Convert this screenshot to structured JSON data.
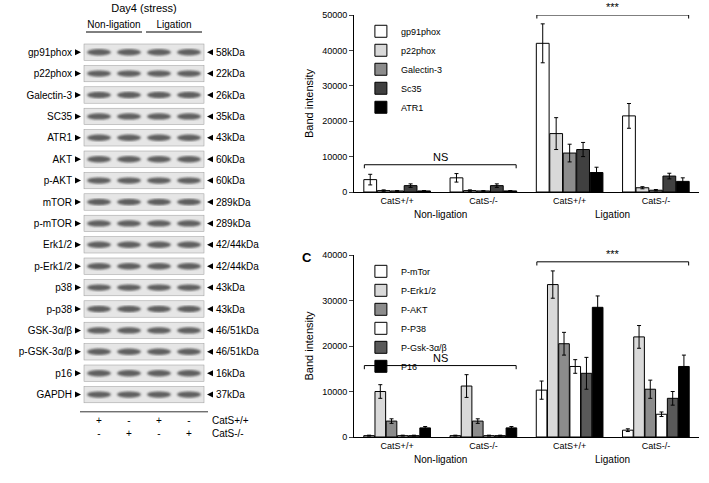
{
  "blot": {
    "title": "Day4 (stress)",
    "groups": [
      {
        "label": "Non-ligation",
        "lanes": 2
      },
      {
        "label": "Ligation",
        "lanes": 2
      }
    ],
    "rows": [
      {
        "protein": "gp91phox",
        "size": "58kDa"
      },
      {
        "protein": "p22phox",
        "size": "22kDa"
      },
      {
        "protein": "Galectin-3",
        "size": "26kDa"
      },
      {
        "protein": "SC35",
        "size": "35kDa"
      },
      {
        "protein": "ATR1",
        "size": "43kDa"
      },
      {
        "protein": "AKT",
        "size": "60kDa"
      },
      {
        "protein": "p-AKT",
        "size": "60kDa"
      },
      {
        "protein": "mTOR",
        "size": "289kDa"
      },
      {
        "protein": "p-mTOR",
        "size": "289kDa"
      },
      {
        "protein": "Erk1/2",
        "size": "42/44kDa"
      },
      {
        "protein": "p-Erk1/2",
        "size": "42/44kDa"
      },
      {
        "protein": "p38",
        "size": "43kDa"
      },
      {
        "protein": "p-p38",
        "size": "43kDa"
      },
      {
        "protein": "GSK-3α/β",
        "size": "46/51kDa"
      },
      {
        "protein": "p-GSK-3α/β",
        "size": "46/51kDa"
      },
      {
        "protein": "p16",
        "size": "16kDa"
      },
      {
        "protein": "GAPDH",
        "size": "37kDa"
      }
    ],
    "genotype_rows": [
      {
        "label": "CatS+/+",
        "marks": [
          "+",
          "-",
          "+",
          "-"
        ]
      },
      {
        "label": "CatS-/-",
        "marks": [
          "-",
          "+",
          "-",
          "+"
        ]
      }
    ]
  },
  "chart_data": [
    {
      "type": "bar",
      "categories": [
        "CatS+/+",
        "CatS-/-",
        "CatS+/+",
        "CatS-/-"
      ],
      "groups": [
        "Non-ligation",
        "Non-ligation",
        "Ligation",
        "Ligation"
      ],
      "y_label": "Band intensity",
      "ylim": [
        0,
        50000
      ],
      "yticks": [
        0,
        10000,
        20000,
        30000,
        40000,
        50000
      ],
      "grid": false,
      "legend": "top-left",
      "annotations": [
        {
          "text": "NS",
          "group": "Non-ligation"
        },
        {
          "text": "***",
          "group": "Ligation"
        }
      ],
      "series": [
        {
          "name": "gp91phox",
          "color": "#ffffff",
          "values": [
            3500,
            4000,
            42000,
            21500
          ],
          "errors": [
            1500,
            1200,
            5500,
            3500
          ]
        },
        {
          "name": "p22phox",
          "color": "#d9d9d9",
          "values": [
            400,
            400,
            16500,
            1200
          ],
          "errors": [
            200,
            200,
            4500,
            300
          ]
        },
        {
          "name": "Galectin-3",
          "color": "#8c8c8c",
          "values": [
            300,
            300,
            11000,
            500
          ],
          "errors": [
            100,
            100,
            2500,
            200
          ]
        },
        {
          "name": "Sc35",
          "color": "#404040",
          "values": [
            1800,
            1800,
            12000,
            4500
          ],
          "errors": [
            500,
            500,
            2000,
            800
          ]
        },
        {
          "name": "ATR1",
          "color": "#000000",
          "values": [
            300,
            300,
            5500,
            3000
          ],
          "errors": [
            100,
            100,
            1500,
            1000
          ]
        }
      ]
    },
    {
      "type": "bar",
      "panel_label": "C",
      "categories": [
        "CatS+/+",
        "CatS-/-",
        "CatS+/+",
        "CatS-/-"
      ],
      "groups": [
        "Non-ligation",
        "Non-ligation",
        "Ligation",
        "Ligation"
      ],
      "y_label": "Band intensity",
      "ylim": [
        0,
        40000
      ],
      "yticks": [
        0,
        10000,
        20000,
        30000,
        40000
      ],
      "grid": false,
      "legend": "top-left",
      "annotations": [
        {
          "text": "NS",
          "group": "Non-ligation"
        },
        {
          "text": "***",
          "group": "Ligation"
        }
      ],
      "series": [
        {
          "name": "P-mTor",
          "color": "#ffffff",
          "values": [
            300,
            300,
            10300,
            1500
          ],
          "errors": [
            100,
            100,
            2000,
            300
          ]
        },
        {
          "name": "P-Erk1/2",
          "color": "#d9d9d9",
          "values": [
            10000,
            11200,
            33500,
            22000
          ],
          "errors": [
            1500,
            2500,
            3000,
            2500
          ]
        },
        {
          "name": "P-AKT",
          "color": "#8c8c8c",
          "values": [
            3500,
            3500,
            20500,
            10500
          ],
          "errors": [
            500,
            500,
            2500,
            2000
          ]
        },
        {
          "name": "P-P38",
          "color": "#ffffff",
          "values": [
            300,
            300,
            15500,
            5000
          ],
          "errors": [
            100,
            100,
            1500,
            500
          ]
        },
        {
          "name": "P-Gsk-3α/β",
          "color": "#595959",
          "values": [
            300,
            300,
            14000,
            8500
          ],
          "errors": [
            100,
            100,
            3500,
            1500
          ]
        },
        {
          "name": "P16",
          "color": "#000000",
          "values": [
            2000,
            2000,
            28500,
            15500
          ],
          "errors": [
            300,
            300,
            2500,
            2500
          ]
        }
      ]
    }
  ]
}
